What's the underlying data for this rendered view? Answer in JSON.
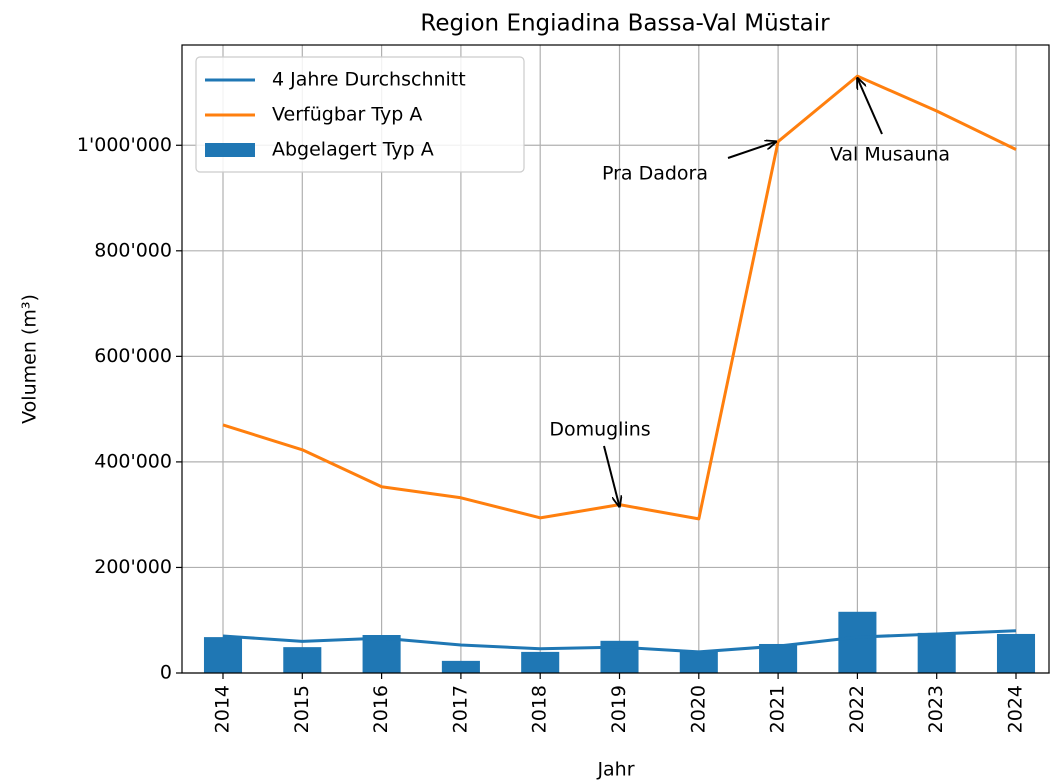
{
  "chart_data": {
    "type": "bar_line",
    "title": "Region Engiadina Bassa-Val Müstair",
    "x_label": "Jahr",
    "y_label": "Volumen (m³)",
    "categories": [
      "2014",
      "2015",
      "2016",
      "2017",
      "2018",
      "2019",
      "2020",
      "2021",
      "2022",
      "2023",
      "2024"
    ],
    "series": [
      {
        "name": "4 Jahre Durchschnitt",
        "type": "line",
        "color": "#1f77b4",
        "values": [
          70000,
          60000,
          66000,
          53000,
          46000,
          49000,
          40000,
          51000,
          68000,
          74000,
          80000
        ]
      },
      {
        "name": "Verfügbar Typ A",
        "type": "line",
        "color": "#ff7f0e",
        "values": [
          470000,
          423000,
          353000,
          332000,
          294000,
          319000,
          292000,
          1007000,
          1131000,
          1065000,
          992000
        ]
      },
      {
        "name": "Abgelagert Typ A",
        "type": "bar",
        "color": "#1f77b4",
        "values": [
          68000,
          49000,
          72000,
          23000,
          40000,
          61000,
          42000,
          55000,
          116000,
          76000,
          74000
        ]
      }
    ],
    "ylim": [
      0,
      1190000
    ],
    "yticks": [
      0,
      {
        "value": 200000,
        "label": "200'000"
      },
      {
        "value": 400000,
        "label": "400'000"
      },
      {
        "value": 600000,
        "label": "600'000"
      },
      {
        "value": 800000,
        "label": "800'000"
      },
      {
        "value": 1000000,
        "label": "1'000'000"
      }
    ],
    "grid": true,
    "legend": "upper left",
    "annotations": [
      {
        "text": "Domuglins"
      },
      {
        "text": "Pra Dadora"
      },
      {
        "text": "Val Musauna"
      }
    ]
  }
}
